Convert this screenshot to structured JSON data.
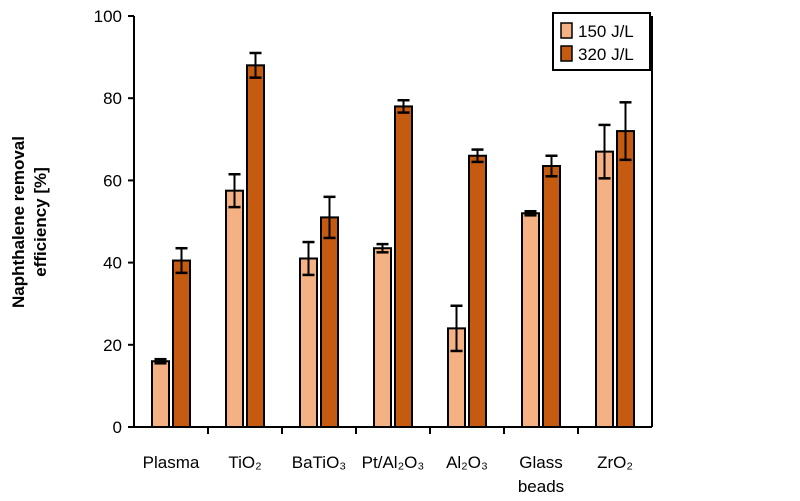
{
  "chart_data": {
    "type": "bar",
    "title": "",
    "xlabel": "",
    "ylabel": [
      "Naphthalene removal",
      "efficiency [%]"
    ],
    "ylim": [
      0,
      100
    ],
    "yticks": [
      "0",
      "20",
      "40",
      "60",
      "80",
      "100"
    ],
    "categories": [
      [
        "Plasma"
      ],
      [
        "TiO₂"
      ],
      [
        "BaTiO₃"
      ],
      [
        "Pt/Al₂O₃"
      ],
      [
        "Al₂O₃"
      ],
      [
        "Glass",
        "beads"
      ],
      [
        "ZrO₂"
      ]
    ],
    "series": [
      {
        "name": "150 J/L",
        "color": "#F4B183",
        "values": [
          16,
          57.5,
          41,
          43.5,
          24,
          52,
          67
        ],
        "errors": [
          0.5,
          4,
          4,
          1,
          5.5,
          0.5,
          6.5
        ]
      },
      {
        "name": "320 J/L",
        "color": "#C55A11",
        "values": [
          40.5,
          88,
          51,
          78,
          66,
          63.5,
          72
        ],
        "errors": [
          3,
          3,
          5,
          1.5,
          1.5,
          2.5,
          7
        ]
      }
    ],
    "legend": "top-right",
    "grid": false
  }
}
